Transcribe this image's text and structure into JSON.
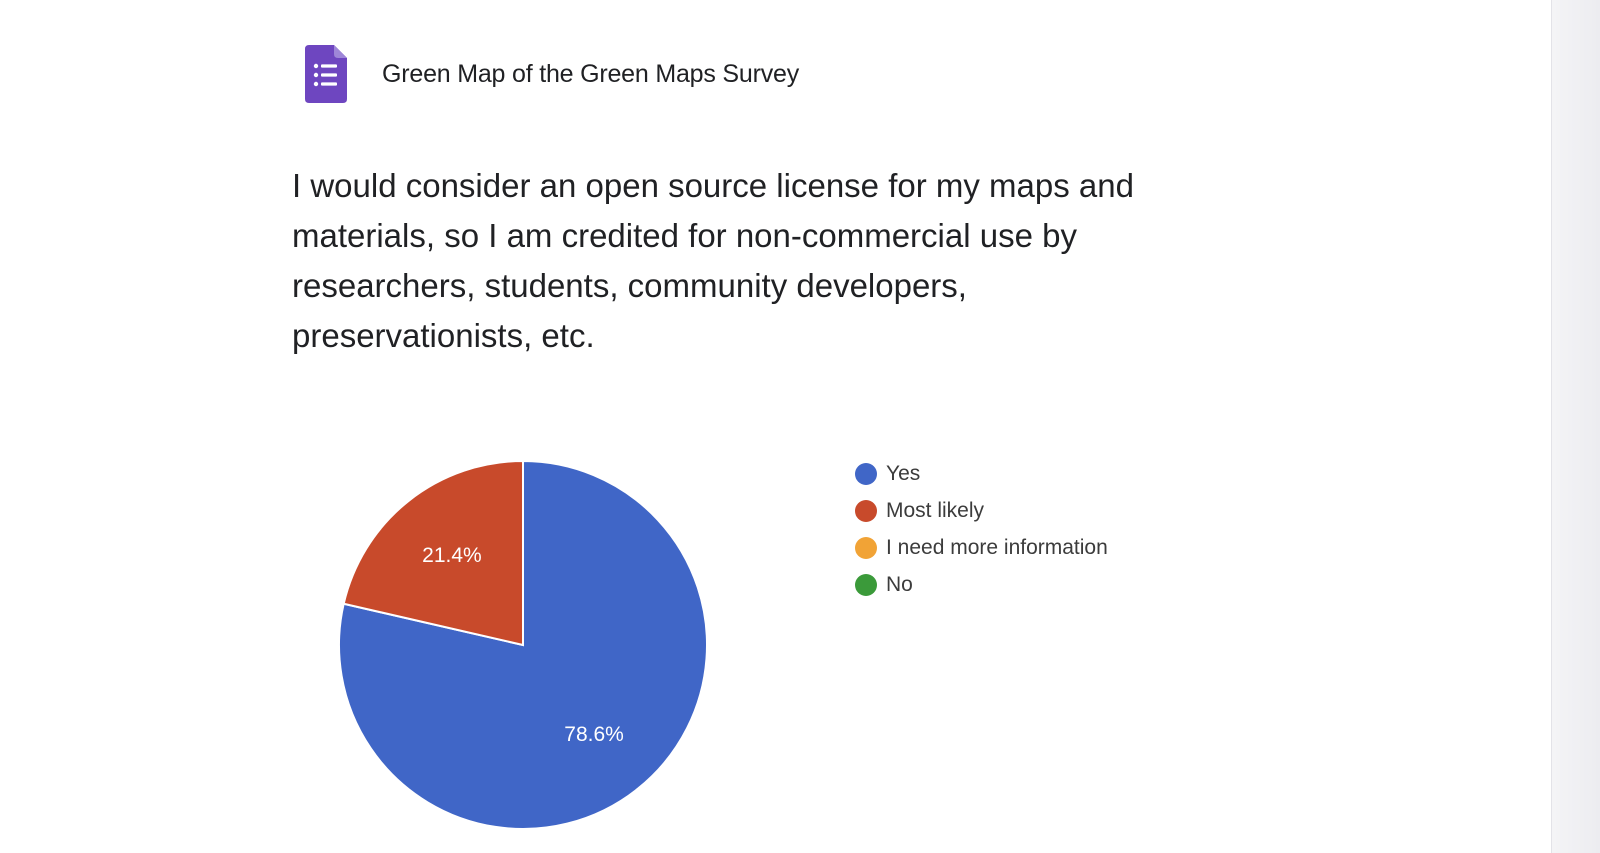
{
  "survey": {
    "title": "Green Map of the Green Maps Survey",
    "icon": "google-forms-icon"
  },
  "question": {
    "text": "I would consider an open source license for my maps and materials, so I am credited for non-commercial use by researchers, students, community developers, preservationists, etc."
  },
  "colors": {
    "forms_icon": "#6e46c0",
    "forms_icon_fold": "#9e86d8"
  },
  "chart_data": {
    "type": "pie",
    "categories": [
      "Yes",
      "Most likely",
      "I need more information",
      "No"
    ],
    "values": [
      78.6,
      21.4,
      0,
      0
    ],
    "value_labels": [
      "78.6%",
      "21.4%",
      "",
      ""
    ],
    "colors": [
      "#4066c7",
      "#c84a2b",
      "#f1a336",
      "#3b9a3a"
    ],
    "legend": "right",
    "start_angle": "top, clockwise"
  }
}
